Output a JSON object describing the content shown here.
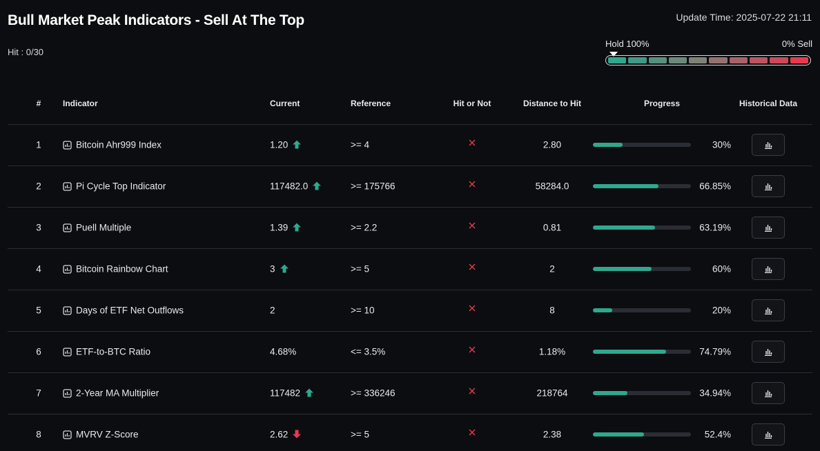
{
  "header": {
    "title": "Bull Market Peak Indicators - Sell At The Top",
    "update_time": "Update Time: 2025-07-22 21:11",
    "hit": "Hit : 0/30",
    "gauge_left": "Hold 100%",
    "gauge_right": "0% Sell"
  },
  "table": {
    "columns": [
      "#",
      "Indicator",
      "Current",
      "Reference",
      "Hit or Not",
      "Distance to Hit",
      "Progress",
      "Historical Data"
    ],
    "rows": [
      {
        "index": "1",
        "indicator": "Bitcoin Ahr999 Index",
        "current": "1.20",
        "trend": "up",
        "reference": ">= 4",
        "distance": "2.80",
        "progress": {
          "value": 30,
          "label": "30%"
        }
      },
      {
        "index": "2",
        "indicator": "Pi Cycle Top Indicator",
        "current": "117482.0",
        "trend": "up",
        "reference": ">= 175766",
        "distance": "58284.0",
        "progress": {
          "value": 66.85,
          "label": "66.85%"
        }
      },
      {
        "index": "3",
        "indicator": "Puell Multiple",
        "current": "1.39",
        "trend": "up",
        "reference": ">= 2.2",
        "distance": "0.81",
        "progress": {
          "value": 63.19,
          "label": "63.19%"
        }
      },
      {
        "index": "4",
        "indicator": "Bitcoin Rainbow Chart",
        "current": "3",
        "trend": "up",
        "reference": ">= 5",
        "distance": "2",
        "progress": {
          "value": 60,
          "label": "60%"
        }
      },
      {
        "index": "5",
        "indicator": "Days of ETF Net Outflows",
        "current": "2",
        "trend": null,
        "reference": ">= 10",
        "distance": "8",
        "progress": {
          "value": 20,
          "label": "20%"
        }
      },
      {
        "index": "6",
        "indicator": "ETF-to-BTC Ratio",
        "current": "4.68%",
        "trend": null,
        "reference": "<= 3.5%",
        "distance": "1.18%",
        "progress": {
          "value": 74.79,
          "label": "74.79%"
        }
      },
      {
        "index": "7",
        "indicator": "2-Year MA Multiplier",
        "current": "117482",
        "trend": "up",
        "reference": ">= 336246",
        "distance": "218764",
        "progress": {
          "value": 34.94,
          "label": "34.94%"
        }
      },
      {
        "index": "8",
        "indicator": "MVRV Z-Score",
        "current": "2.62",
        "trend": "down",
        "reference": ">= 5",
        "distance": "2.38",
        "progress": {
          "value": 52.4,
          "label": "52.4%"
        }
      }
    ]
  }
}
